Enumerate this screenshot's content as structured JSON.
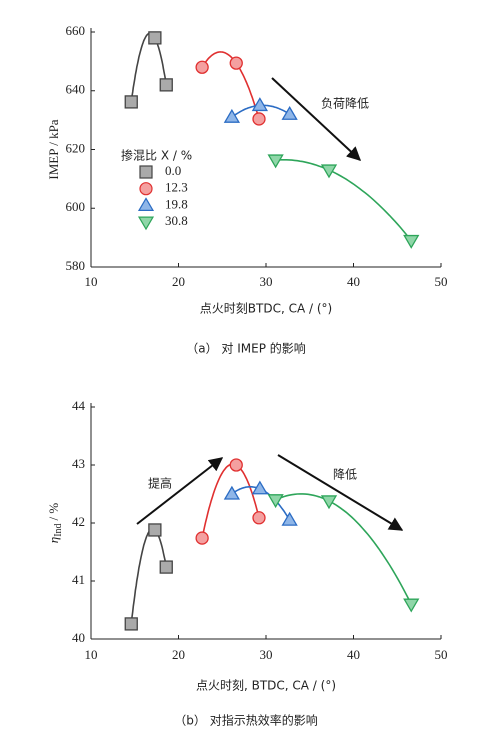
{
  "chart_data": [
    {
      "type": "line",
      "xlabel": "点火时刻BTDC, CA / (°)",
      "ylabel": "IMEP / kPa",
      "caption": "（a） 对 IMEP 的影响",
      "xlim": [
        10,
        50
      ],
      "xticks": [
        10,
        20,
        30,
        40,
        50
      ],
      "ylim": [
        580,
        660
      ],
      "yticks": [
        580,
        600,
        620,
        640,
        660
      ],
      "legend": true,
      "legend_title": "掺混比 X / %",
      "annotations": [
        {
          "text": "负荷降低"
        }
      ],
      "series": [
        {
          "name": "0.0",
          "color": "#444444",
          "fill": "#aaaaaa",
          "marker": "square",
          "x": [
            14.6,
            17.3,
            18.6
          ],
          "values": [
            636.2,
            658,
            642
          ]
        },
        {
          "name": "12.3",
          "color": "#e03030",
          "fill": "#f4a0a0",
          "marker": "circle",
          "x": [
            22.7,
            26.6,
            29.2
          ],
          "values": [
            648,
            649.4,
            630.4
          ]
        },
        {
          "name": "19.8",
          "color": "#2b6cc4",
          "fill": "#8fb6e8",
          "marker": "triangle-up",
          "x": [
            26.1,
            29.3,
            32.7
          ],
          "values": [
            631,
            635,
            632
          ]
        },
        {
          "name": "30.8",
          "color": "#2ea55a",
          "fill": "#8fd6a8",
          "marker": "triangle-down",
          "x": [
            31.1,
            37.2,
            46.6
          ],
          "values": [
            616.4,
            613,
            589
          ]
        }
      ]
    },
    {
      "type": "line",
      "xlabel": "点火时刻, BTDC, CA / (°)",
      "ylabel": {
        "symbol": "η",
        "subscript": "Ind",
        "unit": "/ %"
      },
      "caption": "（b） 对指示热效率的影响",
      "xlim": [
        10,
        50
      ],
      "xticks": [
        10,
        20,
        30,
        40,
        50
      ],
      "ylim": [
        40,
        44
      ],
      "yticks": [
        40,
        41,
        42,
        43,
        44
      ],
      "legend": false,
      "annotations": [
        {
          "text": "提高"
        },
        {
          "text": "降低"
        }
      ],
      "series": [
        {
          "name": "0.0",
          "color": "#444444",
          "fill": "#aaaaaa",
          "marker": "square",
          "x": [
            14.6,
            17.3,
            18.6
          ],
          "values": [
            40.26,
            41.88,
            41.24
          ]
        },
        {
          "name": "12.3",
          "color": "#e03030",
          "fill": "#f4a0a0",
          "marker": "circle",
          "x": [
            22.7,
            26.6,
            29.2
          ],
          "values": [
            41.74,
            43.0,
            42.09
          ]
        },
        {
          "name": "19.8",
          "color": "#2b6cc4",
          "fill": "#8fb6e8",
          "marker": "triangle-up",
          "x": [
            26.1,
            29.3,
            32.7
          ],
          "values": [
            42.5,
            42.59,
            42.05
          ]
        },
        {
          "name": "30.8",
          "color": "#2ea55a",
          "fill": "#8fd6a8",
          "marker": "triangle-down",
          "x": [
            31.1,
            37.2,
            46.6
          ],
          "values": [
            42.4,
            42.38,
            40.6
          ]
        }
      ]
    }
  ]
}
